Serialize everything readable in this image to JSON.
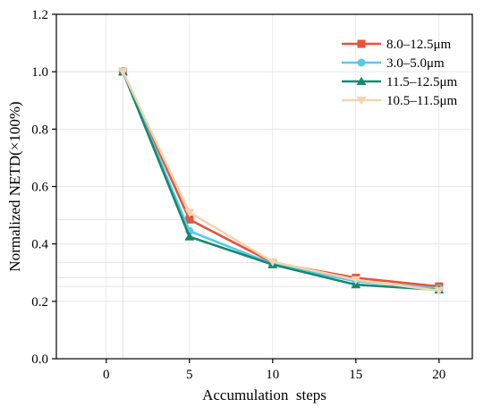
{
  "chart_data": {
    "type": "line",
    "xlabel": "Accumulation  steps",
    "ylabel": "Normalized NETD(×100%)",
    "xlim": [
      -3,
      22
    ],
    "ylim": [
      0.0,
      1.2
    ],
    "xticks": [
      0,
      5,
      10,
      15,
      20
    ],
    "yticks": [
      0.0,
      0.2,
      0.4,
      0.6,
      0.8,
      1.0,
      1.2
    ],
    "ytick_labels": [
      "0.0",
      "0.2",
      "0.4",
      "0.6",
      "0.8",
      "1.0",
      "1.2"
    ],
    "x": [
      1,
      5,
      10,
      15,
      20
    ],
    "grid": true,
    "legend_position": "top-right",
    "series": [
      {
        "name": "8.0–12.5μm",
        "color": "#e8533a",
        "marker": "square",
        "values": [
          1.0,
          0.485,
          0.335,
          0.282,
          0.252
        ]
      },
      {
        "name": "3.0–5.0μm",
        "color": "#5bc6e8",
        "marker": "circle",
        "values": [
          1.0,
          0.445,
          0.33,
          0.27,
          0.245
        ]
      },
      {
        "name": "11.5–12.5μm",
        "color": "#138a72",
        "marker": "triangle-up",
        "values": [
          1.0,
          0.425,
          0.328,
          0.258,
          0.24
        ]
      },
      {
        "name": "10.5–11.5μm",
        "color": "#f3d4b0",
        "marker": "triangle-down",
        "values": [
          1.0,
          0.51,
          0.338,
          0.275,
          0.237
        ]
      }
    ]
  }
}
